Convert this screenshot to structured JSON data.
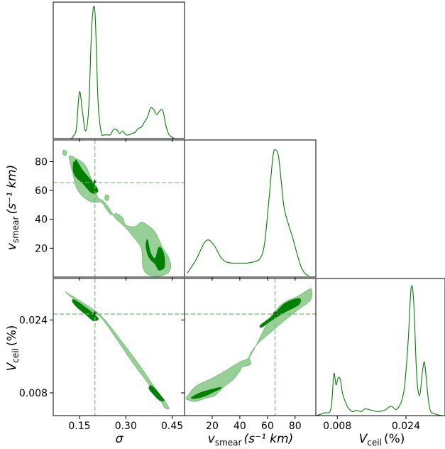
{
  "figure": {
    "type": "corner-plot"
  },
  "colors": {
    "line": "#008000",
    "fill_inner": "#008000",
    "fill_outer": "#97cf97",
    "stroke_outer": "#6fbf6f",
    "guide": "#6fbf6f",
    "axes": "#000000"
  },
  "labels": {
    "sigma": "σ",
    "vsmear_main": "v",
    "vsmear_sub": "smear",
    "vsmear_unit": "(s⁻¹ km)",
    "vceil_main": "V",
    "vceil_sub": "ceil",
    "vceil_unit": "(%)"
  },
  "chart_data": {
    "type": "scatter",
    "truth": {
      "sigma": 0.2,
      "vsmear": 65.5,
      "vceil": 0.0253
    },
    "axes": {
      "sigma": {
        "lim": [
          0.065,
          0.49
        ],
        "ticks": [
          0.15,
          0.3,
          0.45
        ],
        "tick_labels": [
          "0.15",
          "0.30",
          "0.45"
        ]
      },
      "vsmear": {
        "lim": [
          0,
          95
        ],
        "ticks": [
          20,
          40,
          60,
          80
        ],
        "tick_labels": [
          "20",
          "40",
          "60",
          "80"
        ]
      },
      "vceil": {
        "lim": [
          0.003,
          0.0331
        ],
        "ticks": [
          0.008,
          0.024
        ],
        "tick_labels": [
          "0.008",
          "0.024"
        ]
      }
    },
    "marginals": [
      {
        "param": "sigma",
        "x": [
          0.08,
          0.12,
          0.13,
          0.14,
          0.15,
          0.16,
          0.17,
          0.18,
          0.19,
          0.2,
          0.21,
          0.22,
          0.23,
          0.24,
          0.25,
          0.26,
          0.27,
          0.28,
          0.29,
          0.3,
          0.31,
          0.32,
          0.33,
          0.34,
          0.35,
          0.36,
          0.37,
          0.38,
          0.39,
          0.4,
          0.41,
          0.42,
          0.43,
          0.44,
          0.45,
          0.46,
          0.47
        ],
        "density": [
          0,
          0,
          0.02,
          0.08,
          0.37,
          0.2,
          0.06,
          0.25,
          0.9,
          1.0,
          0.3,
          0.05,
          0.03,
          0.03,
          0.03,
          0.07,
          0.07,
          0.04,
          0.06,
          0.03,
          0.03,
          0.04,
          0.05,
          0.08,
          0.09,
          0.13,
          0.17,
          0.24,
          0.23,
          0.19,
          0.22,
          0.22,
          0.1,
          0.03,
          0.01,
          0,
          0
        ]
      },
      {
        "param": "vsmear",
        "x": [
          2,
          8,
          12,
          15,
          18,
          22,
          26,
          30,
          35,
          40,
          45,
          50,
          55,
          58,
          61,
          64,
          66,
          68,
          70,
          72,
          75,
          78,
          81,
          84,
          87,
          90
        ],
        "density": [
          0.03,
          0.13,
          0.22,
          0.28,
          0.29,
          0.24,
          0.16,
          0.12,
          0.11,
          0.11,
          0.11,
          0.12,
          0.15,
          0.27,
          0.6,
          0.95,
          1.0,
          0.95,
          0.75,
          0.55,
          0.42,
          0.32,
          0.2,
          0.09,
          0.03,
          0.01
        ]
      },
      {
        "param": "vceil",
        "x": [
          0.003,
          0.005,
          0.0065,
          0.0072,
          0.0077,
          0.0082,
          0.0087,
          0.0092,
          0.0098,
          0.0105,
          0.0115,
          0.0125,
          0.0135,
          0.0145,
          0.016,
          0.0175,
          0.019,
          0.0205,
          0.022,
          0.0235,
          0.0245,
          0.0252,
          0.0258,
          0.0265,
          0.0272,
          0.0278,
          0.0283,
          0.0288,
          0.0293,
          0.0298,
          0.031,
          0.0325,
          0.033
        ],
        "density": [
          0,
          0.02,
          0.05,
          0.31,
          0.23,
          0.28,
          0.27,
          0.17,
          0.11,
          0.06,
          0.03,
          0.04,
          0.03,
          0.05,
          0.04,
          0.03,
          0.04,
          0.07,
          0.05,
          0.18,
          0.55,
          0.95,
          0.85,
          0.3,
          0.15,
          0.32,
          0.4,
          0.25,
          0.1,
          0.03,
          0.01,
          0,
          0
        ]
      }
    ],
    "contours": [
      {
        "pair": [
          "sigma",
          "vsmear"
        ],
        "outer": [
          [
            [
              0.128,
              72
            ],
            [
              0.14,
              62
            ],
            [
              0.16,
              56
            ],
            [
              0.19,
              52
            ],
            [
              0.215,
              52
            ],
            [
              0.225,
              51
            ],
            [
              0.24,
              46
            ],
            [
              0.255,
              43
            ],
            [
              0.27,
              44
            ],
            [
              0.29,
              41
            ],
            [
              0.3,
              36
            ],
            [
              0.33,
              35
            ],
            [
              0.35,
              38
            ],
            [
              0.37,
              36
            ],
            [
              0.395,
              31
            ],
            [
              0.42,
              20
            ],
            [
              0.44,
              13
            ],
            [
              0.445,
              6
            ],
            [
              0.43,
              2
            ],
            [
              0.4,
              0.5
            ],
            [
              0.37,
              2
            ],
            [
              0.355,
              7
            ],
            [
              0.35,
              20
            ],
            [
              0.32,
              29
            ],
            [
              0.3,
              34
            ],
            [
              0.28,
              38
            ],
            [
              0.265,
              41
            ],
            [
              0.245,
              48
            ],
            [
              0.225,
              53
            ],
            [
              0.21,
              55
            ],
            [
              0.2,
              61
            ],
            [
              0.17,
              77
            ],
            [
              0.14,
              82
            ],
            [
              0.118,
              84
            ],
            [
              0.12,
              79
            ]
          ],
          [
            [
              0.098,
              88
            ],
            [
              0.108,
              87
            ],
            [
              0.106,
              84.5
            ],
            [
              0.097,
              85
            ]
          ],
          [
            [
              0.235,
              57
            ],
            [
              0.245,
              56
            ],
            [
              0.242,
              53
            ],
            [
              0.232,
              54
            ]
          ]
        ],
        "inner": [
          [
            [
              0.13,
              73
            ],
            [
              0.13,
              79
            ],
            [
              0.135,
              80
            ],
            [
              0.14,
              81
            ],
            [
              0.16,
              74
            ],
            [
              0.18,
              69
            ],
            [
              0.2,
              64
            ],
            [
              0.21,
              60
            ],
            [
              0.2,
              58
            ],
            [
              0.185,
              59
            ],
            [
              0.16,
              65
            ],
            [
              0.14,
              69
            ]
          ],
          [
            [
              0.37,
              26
            ],
            [
              0.38,
              17
            ],
            [
              0.395,
              13
            ],
            [
              0.405,
              20
            ],
            [
              0.415,
              20
            ],
            [
              0.425,
              14
            ],
            [
              0.425,
              7
            ],
            [
              0.415,
              5
            ],
            [
              0.405,
              5
            ],
            [
              0.395,
              9
            ],
            [
              0.38,
              12
            ],
            [
              0.37,
              16
            ],
            [
              0.365,
              22
            ]
          ]
        ]
      },
      {
        "pair": [
          "sigma",
          "vceil"
        ],
        "outer": [
          [
            [
              0.105,
              0.0302
            ],
            [
              0.115,
              0.0297
            ],
            [
              0.14,
              0.0287
            ],
            [
              0.19,
              0.0265
            ],
            [
              0.23,
              0.0242
            ],
            [
              0.29,
              0.019
            ],
            [
              0.35,
              0.0135
            ],
            [
              0.4,
              0.0085
            ],
            [
              0.43,
              0.0058
            ],
            [
              0.44,
              0.0045
            ],
            [
              0.425,
              0.0048
            ],
            [
              0.41,
              0.0066
            ],
            [
              0.37,
              0.0103
            ],
            [
              0.32,
              0.0148
            ],
            [
              0.27,
              0.0198
            ],
            [
              0.22,
              0.0245
            ],
            [
              0.18,
              0.0262
            ],
            [
              0.13,
              0.0287
            ],
            [
              0.11,
              0.0298
            ]
          ]
        ],
        "inner": [
          [
            [
              0.13,
              0.0285
            ],
            [
              0.155,
              0.0275
            ],
            [
              0.205,
              0.0248
            ],
            [
              0.21,
              0.0241
            ],
            [
              0.195,
              0.0238
            ],
            [
              0.175,
              0.0249
            ],
            [
              0.145,
              0.0266
            ],
            [
              0.128,
              0.0279
            ]
          ],
          [
            [
              0.38,
              0.0096
            ],
            [
              0.395,
              0.0089
            ],
            [
              0.42,
              0.0068
            ],
            [
              0.425,
              0.0063
            ],
            [
              0.41,
              0.0063
            ],
            [
              0.39,
              0.0076
            ],
            [
              0.375,
              0.0089
            ]
          ]
        ]
      },
      {
        "pair": [
          "vsmear",
          "vceil"
        ],
        "outer": [
          [
            [
              2,
              0.0072
            ],
            [
              6,
              0.0088
            ],
            [
              10,
              0.0098
            ],
            [
              20,
              0.0112
            ],
            [
              30,
              0.0129
            ],
            [
              40,
              0.0148
            ],
            [
              47,
              0.0159
            ],
            [
              55,
              0.0204
            ],
            [
              63,
              0.025
            ],
            [
              72,
              0.0278
            ],
            [
              82,
              0.0292
            ],
            [
              90,
              0.0307
            ],
            [
              92,
              0.0306
            ],
            [
              91,
              0.0283
            ],
            [
              82,
              0.0262
            ],
            [
              72,
              0.0238
            ],
            [
              62,
              0.0212
            ],
            [
              53,
              0.0188
            ],
            [
              47,
              0.0161
            ],
            [
              48,
              0.0143
            ],
            [
              42,
              0.0137
            ],
            [
              40,
              0.0128
            ],
            [
              35,
              0.0109
            ],
            [
              28,
              0.0092
            ],
            [
              22,
              0.0074
            ],
            [
              15,
              0.0068
            ],
            [
              8,
              0.0061
            ],
            [
              3,
              0.0064
            ],
            [
              1,
              0.0068
            ]
          ]
        ],
        "inner": [
          [
            [
              6,
              0.0072
            ],
            [
              12,
              0.0081
            ],
            [
              20,
              0.0088
            ],
            [
              26,
              0.0092
            ],
            [
              26,
              0.0089
            ],
            [
              22,
              0.0083
            ],
            [
              15,
              0.0073
            ],
            [
              9,
              0.0068
            ],
            [
              5,
              0.0068
            ]
          ],
          [
            [
              55,
              0.0229
            ],
            [
              64,
              0.025
            ],
            [
              72,
              0.0275
            ],
            [
              80,
              0.0286
            ],
            [
              84,
              0.0285
            ],
            [
              82,
              0.0272
            ],
            [
              72,
              0.0256
            ],
            [
              62,
              0.0237
            ],
            [
              56,
              0.0224
            ]
          ]
        ]
      }
    ]
  }
}
